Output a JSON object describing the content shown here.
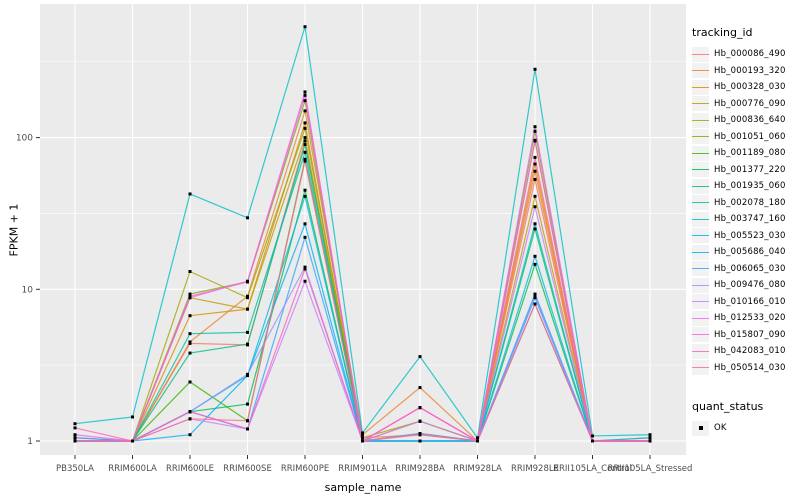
{
  "legends": {
    "tracking_id": {
      "title": "tracking_id"
    },
    "quant_status": {
      "title": "quant_status",
      "items": [
        {
          "label": "OK",
          "marker": "black-square"
        }
      ]
    }
  },
  "colors": {
    "panel_background": "#EBEBEB",
    "gridline": "#FFFFFF",
    "tick_label": "#4D4D4D",
    "tick_mark": "#333333",
    "point": "#000000"
  },
  "chart_data": {
    "type": "line",
    "title": "",
    "xlabel": "sample_name",
    "ylabel": "FPKM + 1",
    "y_scale": "log10",
    "y_ticks": [
      1,
      10,
      100
    ],
    "y_tick_labels": [
      "1",
      "10",
      "100"
    ],
    "y_minor_ticks": [
      3.162,
      31.62,
      316.2
    ],
    "ylim": [
      0.93,
      700
    ],
    "grid": "on",
    "legend_position": "right",
    "point_marker": "black-square",
    "categories": [
      "PB350LA",
      "RRIM600LA",
      "RRIM600LE",
      "RRIM600SE",
      "RRIM600PE",
      "RRIM901LA",
      "RRIM928BA",
      "RRIM928LA",
      "RRIM928LE",
      "RRII105LA_Control",
      "RRII105LA_Stressed"
    ],
    "series": [
      {
        "name": "Hb_000086_490",
        "color": "#F8766D",
        "values": [
          1.05,
          1.0,
          4.4,
          4.3,
          95,
          1.05,
          1.1,
          1.0,
          53,
          1.0,
          1.05
        ]
      },
      {
        "name": "Hb_000193_320",
        "color": "#EA8331",
        "values": [
          1.0,
          1.0,
          4.5,
          9.0,
          150,
          1.1,
          2.25,
          1.0,
          60,
          1.0,
          1.0
        ]
      },
      {
        "name": "Hb_000328_030",
        "color": "#D89000",
        "values": [
          1.0,
          1.0,
          6.7,
          7.4,
          125,
          1.0,
          1.35,
          1.0,
          67,
          1.0,
          1.0
        ]
      },
      {
        "name": "Hb_000776_090",
        "color": "#C09B00",
        "values": [
          1.0,
          1.0,
          8.8,
          7.4,
          100,
          1.0,
          1.12,
          1.0,
          41,
          1.0,
          1.0
        ]
      },
      {
        "name": "Hb_000836_640",
        "color": "#A3A500",
        "values": [
          1.0,
          1.0,
          13.1,
          8.8,
          115,
          1.05,
          1.35,
          1.0,
          95,
          1.0,
          1.0
        ]
      },
      {
        "name": "Hb_001051_060",
        "color": "#7CAE00",
        "values": [
          1.0,
          1.0,
          9.3,
          11.2,
          175,
          1.0,
          1.12,
          1.0,
          110,
          1.0,
          1.0
        ]
      },
      {
        "name": "Hb_001189_080",
        "color": "#39B600",
        "values": [
          1.0,
          1.0,
          2.45,
          1.36,
          72,
          1.0,
          1.0,
          1.0,
          8.0,
          1.0,
          1.0
        ]
      },
      {
        "name": "Hb_001377_220",
        "color": "#00BB4E",
        "values": [
          1.0,
          1.0,
          1.56,
          1.75,
          45,
          1.0,
          1.0,
          1.0,
          14.6,
          1.0,
          1.0
        ]
      },
      {
        "name": "Hb_001935_060",
        "color": "#00BF7D",
        "values": [
          1.0,
          1.0,
          3.8,
          4.35,
          90,
          1.0,
          1.12,
          1.0,
          25,
          1.0,
          1.0
        ]
      },
      {
        "name": "Hb_002078_180",
        "color": "#00C1A3",
        "values": [
          1.0,
          1.0,
          5.1,
          5.2,
          80,
          1.0,
          1.0,
          1.0,
          27,
          1.0,
          1.0
        ]
      },
      {
        "name": "Hb_003747_160",
        "color": "#00BFC4",
        "values": [
          1.3,
          1.44,
          42.5,
          29.6,
          538,
          1.13,
          3.6,
          1.05,
          282,
          1.08,
          1.1
        ]
      },
      {
        "name": "Hb_005523_030",
        "color": "#00BAE0",
        "values": [
          1.0,
          1.0,
          1.56,
          2.7,
          41,
          1.0,
          1.0,
          1.0,
          16.5,
          1.0,
          1.05
        ]
      },
      {
        "name": "Hb_005686_040",
        "color": "#00B0F6",
        "values": [
          1.0,
          1.0,
          1.1,
          2.7,
          27,
          1.0,
          1.0,
          1.0,
          9.3,
          1.0,
          1.0
        ]
      },
      {
        "name": "Hb_006065_030",
        "color": "#35A2FF",
        "values": [
          1.05,
          1.0,
          1.56,
          1.2,
          22,
          1.0,
          1.0,
          1.0,
          8.8,
          1.0,
          1.0
        ]
      },
      {
        "name": "Hb_009476_080",
        "color": "#9590FF",
        "values": [
          1.0,
          1.0,
          1.56,
          2.75,
          14,
          1.0,
          1.12,
          1.0,
          9.0,
          1.0,
          1.0
        ]
      },
      {
        "name": "Hb_010166_010",
        "color": "#C77CFF",
        "values": [
          1.0,
          1.0,
          1.4,
          1.2,
          11.3,
          1.0,
          1.35,
          1.0,
          35,
          1.0,
          1.0
        ]
      },
      {
        "name": "Hb_012533_020",
        "color": "#E76BF3",
        "values": [
          1.1,
          1.0,
          8.8,
          11.3,
          190,
          1.0,
          1.66,
          1.0,
          118,
          1.0,
          1.0
        ]
      },
      {
        "name": "Hb_015807_090",
        "color": "#FA62DB",
        "values": [
          1.0,
          1.0,
          9.0,
          11.2,
          200,
          1.0,
          1.66,
          1.0,
          96,
          1.0,
          1.0
        ]
      },
      {
        "name": "Hb_042083_010",
        "color": "#FF62BC",
        "values": [
          1.22,
          1.0,
          1.56,
          1.2,
          13.6,
          1.0,
          1.66,
          1.0,
          8.0,
          1.0,
          1.0
        ]
      },
      {
        "name": "Hb_050514_030",
        "color": "#FF6A98",
        "values": [
          1.0,
          1.0,
          1.4,
          1.36,
          70,
          1.0,
          1.1,
          1.0,
          74,
          1.0,
          1.0
        ]
      }
    ]
  }
}
